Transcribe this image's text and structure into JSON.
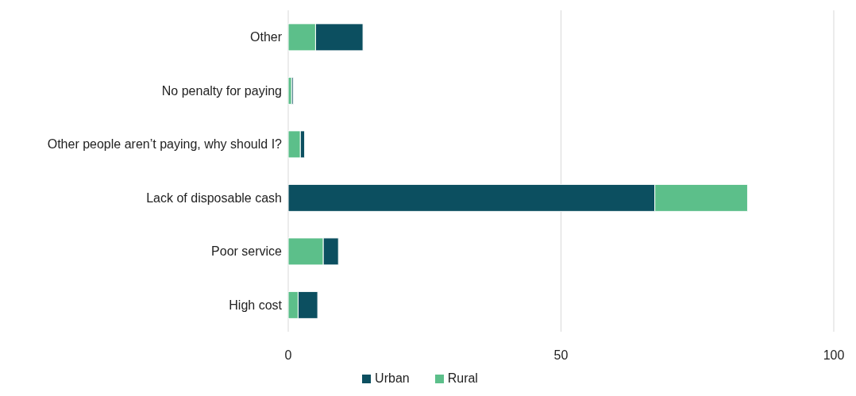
{
  "chart_data": {
    "type": "bar",
    "orientation": "horizontal",
    "categories": [
      "Other",
      "No penalty for paying",
      "Other people aren’t paying, why should I?",
      "Lack of disposable cash",
      "Poor service",
      "High cost"
    ],
    "series": [
      {
        "name": "Urban",
        "color": "#0c4f60",
        "values": [
          8.7,
          0.3,
          0.8,
          67.2,
          2.8,
          3.6
        ],
        "base": [
          5.0,
          0.6,
          2.2,
          0,
          6.4,
          1.8
        ]
      },
      {
        "name": "Rural",
        "color": "#5cbf8a",
        "values": [
          5.0,
          0.6,
          2.2,
          17.0,
          6.4,
          1.8
        ],
        "base": [
          0,
          0,
          0,
          67.2,
          0,
          0
        ]
      }
    ],
    "xlim": [
      0,
      100
    ],
    "xticks": [
      0,
      50,
      100
    ],
    "grid": "x",
    "legend": "bottom"
  }
}
